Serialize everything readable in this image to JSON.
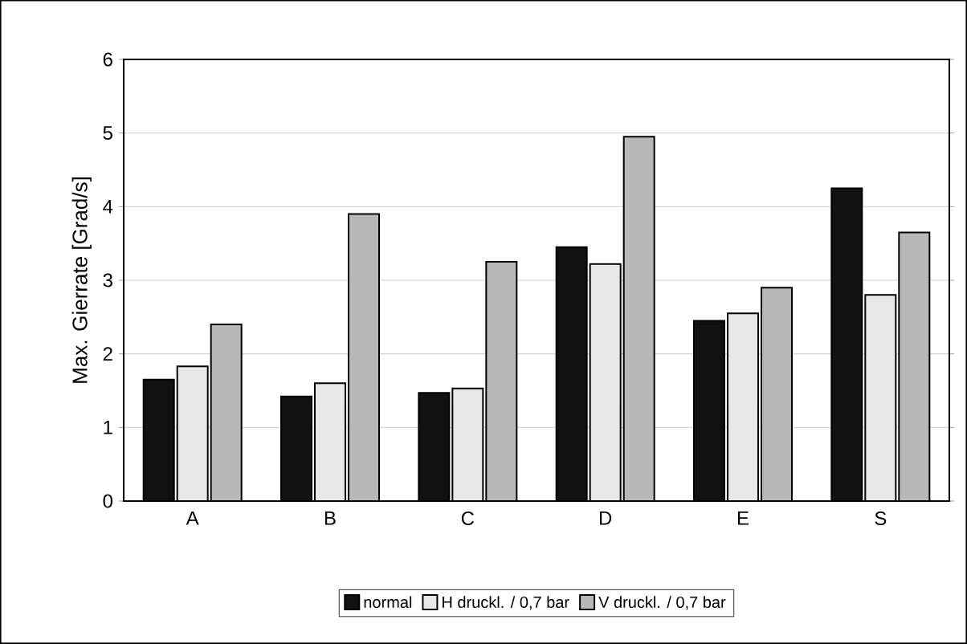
{
  "chart_data": {
    "type": "bar",
    "ylabel": "Max. Gierrate [Grad/s]",
    "categories": [
      "A",
      "B",
      "C",
      "D",
      "E",
      "S"
    ],
    "series": [
      {
        "name": "normal",
        "color": "#111111",
        "values": [
          1.65,
          1.42,
          1.47,
          3.45,
          2.45,
          4.25
        ]
      },
      {
        "name": "H druckl. / 0,7 bar",
        "color": "#e8e8e8",
        "values": [
          1.83,
          1.6,
          1.53,
          3.22,
          2.55,
          2.8
        ]
      },
      {
        "name": "V druckl. / 0,7 bar",
        "color": "#b8b8b8",
        "values": [
          2.4,
          3.9,
          3.25,
          4.95,
          2.9,
          3.65
        ]
      }
    ],
    "ylim": [
      0,
      6
    ],
    "yticks": [
      0,
      1,
      2,
      3,
      4,
      5,
      6
    ],
    "grid": "y",
    "legend": "bottom"
  }
}
